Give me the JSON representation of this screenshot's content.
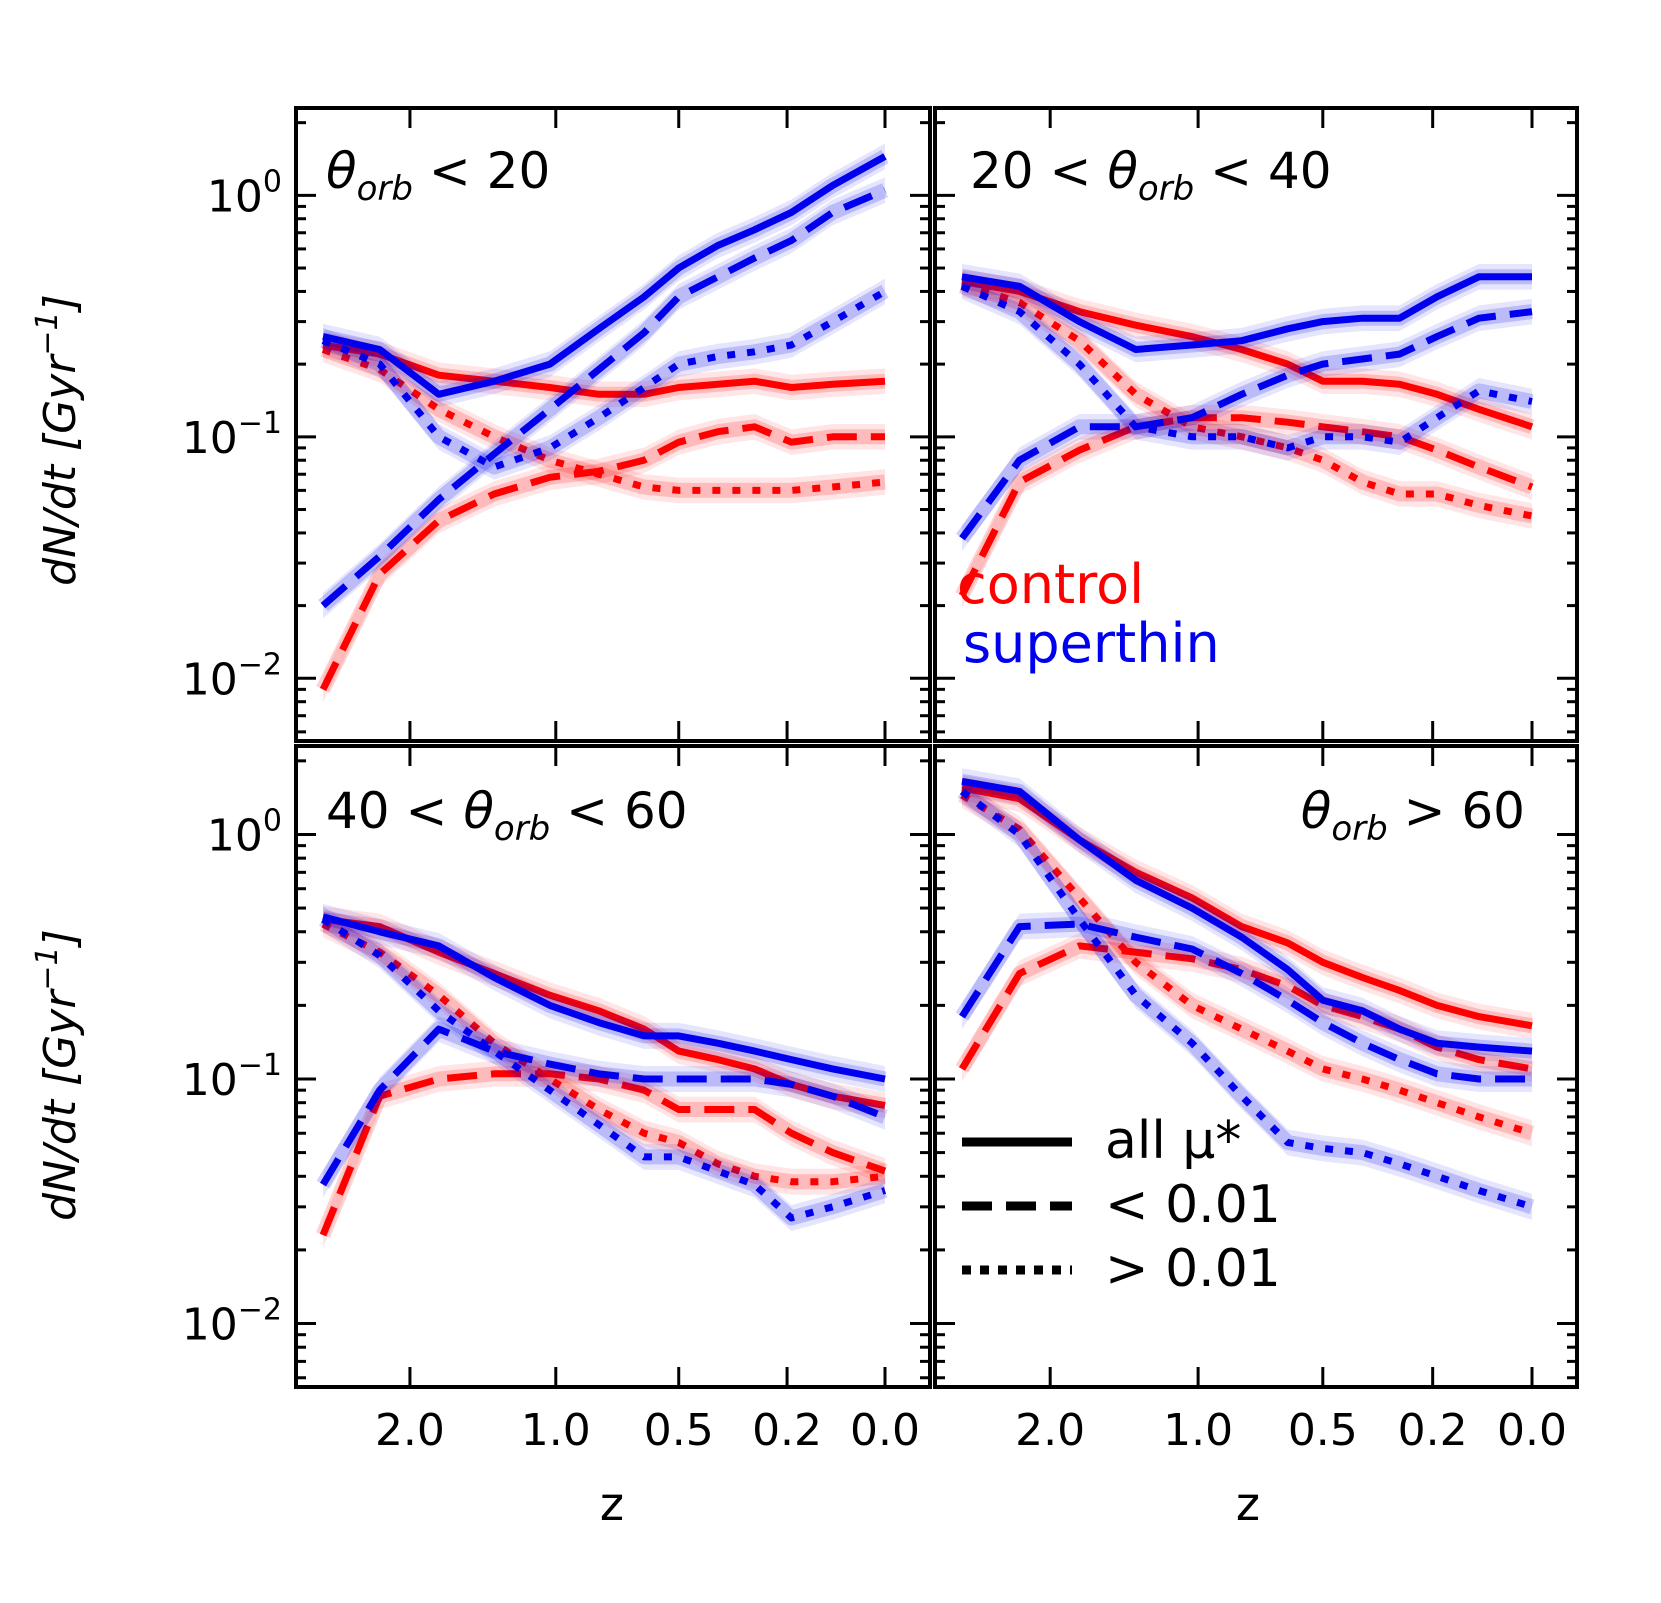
{
  "figure": {
    "ylabel": "dN/dt [Gyr⁻¹]",
    "xlabel": "z",
    "legend": {
      "labels": {
        "control": "control",
        "superthin": "superthin"
      },
      "styles": [
        {
          "style": "solid",
          "label": "all μ*"
        },
        {
          "style": "dashed",
          "label": "< 0.01"
        },
        {
          "style": "dotted",
          "label": "> 0.01"
        }
      ]
    }
  },
  "colors": {
    "control": "#ff0000",
    "superthin": "#0000ee"
  },
  "chart_data": [
    {
      "type": "line",
      "title": "θorb < 20",
      "title_parts": {
        "prefix": "",
        "symbol": "θ",
        "sub": "orb",
        "suffix": " < 20"
      },
      "xlabel": "z",
      "ylabel": "dN/dt [Gyr⁻¹]",
      "x_scale": "lookback",
      "x": [
        3.0,
        2.3,
        1.75,
        1.35,
        1.03,
        0.8,
        0.62,
        0.5,
        0.38,
        0.28,
        0.19,
        0.1,
        0.0
      ],
      "ylim": [
        0.0055,
        2.3
      ],
      "y_scale": "log",
      "ytick_labels": [
        "10^0",
        "10^-1",
        "10^-2"
      ],
      "xtick_labels": [
        "2.0",
        "1.0",
        "0.5",
        "0.2",
        "0.0"
      ],
      "series": [
        {
          "name": "control",
          "sample": "control",
          "mu": "all",
          "style": "solid",
          "values": [
            0.24,
            0.22,
            0.18,
            0.17,
            0.16,
            0.15,
            0.15,
            0.16,
            0.165,
            0.17,
            0.16,
            0.165,
            0.17
          ]
        },
        {
          "name": "control",
          "sample": "control",
          "mu": "<0.01",
          "style": "dashed",
          "values": [
            0.009,
            0.027,
            0.045,
            0.058,
            0.068,
            0.072,
            0.08,
            0.095,
            0.105,
            0.11,
            0.095,
            0.1,
            0.1
          ]
        },
        {
          "name": "control",
          "sample": "control",
          "mu": ">0.01",
          "style": "dotted",
          "values": [
            0.23,
            0.19,
            0.13,
            0.1,
            0.08,
            0.07,
            0.062,
            0.06,
            0.06,
            0.06,
            0.06,
            0.062,
            0.065
          ]
        },
        {
          "name": "superthin",
          "sample": "superthin",
          "mu": "all",
          "style": "solid",
          "values": [
            0.26,
            0.23,
            0.15,
            0.17,
            0.2,
            0.28,
            0.38,
            0.5,
            0.62,
            0.72,
            0.85,
            1.1,
            1.45
          ]
        },
        {
          "name": "superthin",
          "sample": "superthin",
          "mu": "<0.01",
          "style": "dashed",
          "values": [
            0.02,
            0.032,
            0.055,
            0.085,
            0.13,
            0.19,
            0.27,
            0.38,
            0.46,
            0.55,
            0.65,
            0.85,
            1.05
          ]
        },
        {
          "name": "superthin",
          "sample": "superthin",
          "mu": ">0.01",
          "style": "dotted",
          "values": [
            0.25,
            0.2,
            0.1,
            0.075,
            0.09,
            0.12,
            0.16,
            0.2,
            0.215,
            0.225,
            0.24,
            0.3,
            0.4
          ]
        }
      ]
    },
    {
      "type": "line",
      "title": "20 < θorb < 40",
      "title_parts": {
        "prefix": "20 < ",
        "symbol": "θ",
        "sub": "orb",
        "suffix": " < 40"
      },
      "xlabel": "z",
      "ylabel": "",
      "x_scale": "lookback",
      "x": [
        3.0,
        2.3,
        1.75,
        1.35,
        1.03,
        0.8,
        0.62,
        0.5,
        0.38,
        0.28,
        0.19,
        0.1,
        0.0
      ],
      "ylim": [
        0.0055,
        2.3
      ],
      "y_scale": "log",
      "ytick_labels": [],
      "xtick_labels": [
        "2.0",
        "1.0",
        "0.5",
        "0.2",
        "0.0"
      ],
      "series": [
        {
          "name": "control",
          "sample": "control",
          "mu": "all",
          "style": "solid",
          "values": [
            0.44,
            0.4,
            0.33,
            0.29,
            0.26,
            0.23,
            0.2,
            0.17,
            0.17,
            0.165,
            0.15,
            0.13,
            0.11
          ]
        },
        {
          "name": "control",
          "sample": "control",
          "mu": "<0.01",
          "style": "dashed",
          "values": [
            0.022,
            0.065,
            0.088,
            0.11,
            0.12,
            0.12,
            0.115,
            0.11,
            0.105,
            0.1,
            0.088,
            0.075,
            0.062
          ]
        },
        {
          "name": "control",
          "sample": "control",
          "mu": ">0.01",
          "style": "dotted",
          "values": [
            0.43,
            0.36,
            0.25,
            0.15,
            0.11,
            0.1,
            0.09,
            0.08,
            0.065,
            0.058,
            0.058,
            0.052,
            0.047
          ]
        },
        {
          "name": "superthin",
          "sample": "superthin",
          "mu": "all",
          "style": "solid",
          "values": [
            0.46,
            0.42,
            0.3,
            0.23,
            0.24,
            0.25,
            0.28,
            0.3,
            0.31,
            0.31,
            0.38,
            0.46,
            0.46
          ]
        },
        {
          "name": "superthin",
          "sample": "superthin",
          "mu": "<0.01",
          "style": "dashed",
          "values": [
            0.038,
            0.08,
            0.11,
            0.11,
            0.12,
            0.15,
            0.18,
            0.2,
            0.21,
            0.22,
            0.26,
            0.31,
            0.33
          ]
        },
        {
          "name": "superthin",
          "sample": "superthin",
          "mu": ">0.01",
          "style": "dotted",
          "values": [
            0.42,
            0.33,
            0.2,
            0.11,
            0.1,
            0.1,
            0.09,
            0.1,
            0.1,
            0.095,
            0.12,
            0.155,
            0.14
          ]
        }
      ]
    },
    {
      "type": "line",
      "title": "40 < θorb < 60",
      "title_parts": {
        "prefix": "40 < ",
        "symbol": "θ",
        "sub": "orb",
        "suffix": " < 60"
      },
      "xlabel": "z",
      "ylabel": "dN/dt [Gyr⁻¹]",
      "x_scale": "lookback",
      "x": [
        3.0,
        2.3,
        1.75,
        1.35,
        1.03,
        0.8,
        0.62,
        0.5,
        0.38,
        0.28,
        0.19,
        0.1,
        0.0
      ],
      "ylim": [
        0.0055,
        2.3
      ],
      "y_scale": "log",
      "ytick_labels": [
        "10^0",
        "10^-1",
        "10^-2"
      ],
      "xtick_labels": [
        "2.0",
        "1.0",
        "0.5",
        "0.2",
        "0.0"
      ],
      "series": [
        {
          "name": "control",
          "sample": "control",
          "mu": "all",
          "style": "solid",
          "values": [
            0.45,
            0.42,
            0.33,
            0.27,
            0.22,
            0.19,
            0.16,
            0.13,
            0.12,
            0.11,
            0.095,
            0.085,
            0.078
          ]
        },
        {
          "name": "control",
          "sample": "control",
          "mu": "<0.01",
          "style": "dashed",
          "values": [
            0.023,
            0.085,
            0.1,
            0.105,
            0.105,
            0.1,
            0.09,
            0.075,
            0.075,
            0.075,
            0.06,
            0.05,
            0.042
          ]
        },
        {
          "name": "control",
          "sample": "control",
          "mu": ">0.01",
          "style": "dotted",
          "values": [
            0.43,
            0.33,
            0.22,
            0.14,
            0.1,
            0.075,
            0.06,
            0.055,
            0.045,
            0.04,
            0.038,
            0.038,
            0.04
          ]
        },
        {
          "name": "superthin",
          "sample": "superthin",
          "mu": "all",
          "style": "solid",
          "values": [
            0.46,
            0.4,
            0.35,
            0.26,
            0.2,
            0.17,
            0.15,
            0.15,
            0.14,
            0.13,
            0.12,
            0.11,
            0.1
          ]
        },
        {
          "name": "superthin",
          "sample": "superthin",
          "mu": "<0.01",
          "style": "dashed",
          "values": [
            0.037,
            0.09,
            0.16,
            0.13,
            0.115,
            0.105,
            0.1,
            0.1,
            0.1,
            0.1,
            0.095,
            0.085,
            0.07
          ]
        },
        {
          "name": "superthin",
          "sample": "superthin",
          "mu": ">0.01",
          "style": "dotted",
          "values": [
            0.45,
            0.32,
            0.19,
            0.13,
            0.09,
            0.065,
            0.048,
            0.048,
            0.042,
            0.037,
            0.027,
            0.03,
            0.035
          ]
        }
      ]
    },
    {
      "type": "line",
      "title": "θorb > 60",
      "title_parts": {
        "prefix": "",
        "symbol": "θ",
        "sub": "orb",
        "suffix": " > 60"
      },
      "xlabel": "z",
      "ylabel": "",
      "x_scale": "lookback",
      "x": [
        3.0,
        2.3,
        1.75,
        1.35,
        1.03,
        0.8,
        0.62,
        0.5,
        0.38,
        0.28,
        0.19,
        0.1,
        0.0
      ],
      "ylim": [
        0.0055,
        2.3
      ],
      "y_scale": "log",
      "ytick_labels": [],
      "xtick_labels": [
        "2.0",
        "1.0",
        "0.5",
        "0.2",
        "0.0"
      ],
      "series": [
        {
          "name": "control",
          "sample": "control",
          "mu": "all",
          "style": "solid",
          "values": [
            1.55,
            1.4,
            0.95,
            0.7,
            0.55,
            0.42,
            0.36,
            0.3,
            0.26,
            0.23,
            0.2,
            0.18,
            0.165
          ]
        },
        {
          "name": "control",
          "sample": "control",
          "mu": "<0.01",
          "style": "dashed",
          "values": [
            0.11,
            0.27,
            0.35,
            0.33,
            0.31,
            0.28,
            0.24,
            0.2,
            0.18,
            0.16,
            0.135,
            0.12,
            0.11
          ]
        },
        {
          "name": "control",
          "sample": "control",
          "mu": ">0.01",
          "style": "dotted",
          "values": [
            1.45,
            1.05,
            0.55,
            0.3,
            0.2,
            0.16,
            0.13,
            0.11,
            0.1,
            0.09,
            0.08,
            0.07,
            0.06
          ]
        },
        {
          "name": "superthin",
          "sample": "superthin",
          "mu": "all",
          "style": "solid",
          "values": [
            1.65,
            1.5,
            0.95,
            0.65,
            0.5,
            0.38,
            0.28,
            0.21,
            0.19,
            0.16,
            0.14,
            0.135,
            0.13
          ]
        },
        {
          "name": "superthin",
          "sample": "superthin",
          "mu": "<0.01",
          "style": "dashed",
          "values": [
            0.18,
            0.42,
            0.43,
            0.38,
            0.34,
            0.27,
            0.21,
            0.17,
            0.14,
            0.12,
            0.105,
            0.1,
            0.1
          ]
        },
        {
          "name": "superthin",
          "sample": "superthin",
          "mu": ">0.01",
          "style": "dotted",
          "values": [
            1.5,
            1.0,
            0.45,
            0.22,
            0.14,
            0.085,
            0.055,
            0.052,
            0.05,
            0.045,
            0.04,
            0.035,
            0.03
          ]
        }
      ]
    }
  ]
}
